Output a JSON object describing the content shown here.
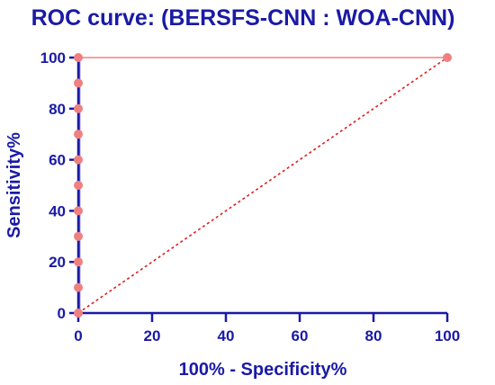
{
  "chart_data": {
    "type": "line",
    "title": "ROC curve: (BERSFS-CNN : WOA-CNN)",
    "xlabel": "100% - Specificity%",
    "ylabel": "Sensitivity%",
    "xlim": [
      0,
      100
    ],
    "ylim": [
      0,
      100
    ],
    "x_ticks": [
      "0",
      "20",
      "40",
      "60",
      "80",
      "100"
    ],
    "y_ticks": [
      "0",
      "20",
      "40",
      "60",
      "80",
      "100"
    ],
    "grid": false,
    "legend": "none",
    "series": [
      {
        "x": [
          0,
          0,
          0,
          0,
          0,
          0,
          0,
          0,
          0,
          0,
          0,
          100
        ],
        "y": [
          0,
          10,
          20,
          30,
          40,
          50,
          60,
          70,
          80,
          90,
          100,
          100
        ],
        "color": "#f08080",
        "marker": "circle"
      },
      {
        "x": [
          0,
          100
        ],
        "y": [
          0,
          100
        ],
        "color": "#e02020",
        "style": "dashed"
      }
    ],
    "colors": {
      "text": "#1a1aa6",
      "axis": "#1a1aa6",
      "curve_left_edge": "#6a5acd"
    }
  }
}
